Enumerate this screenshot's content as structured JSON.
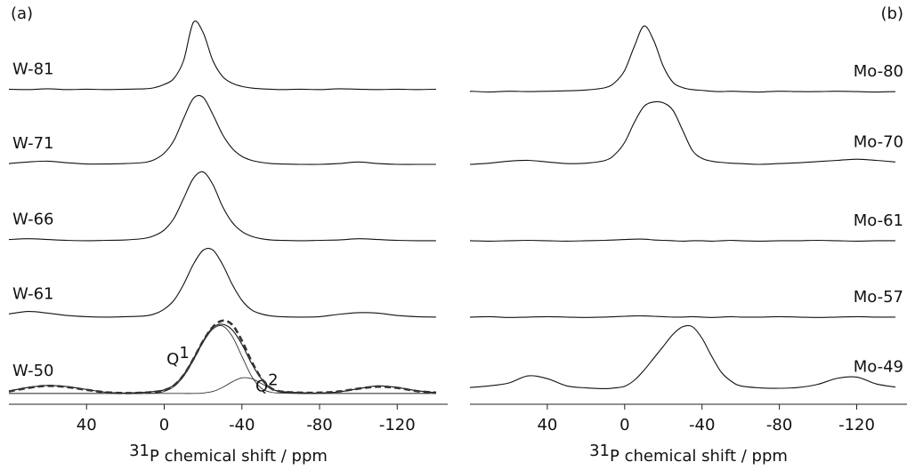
{
  "chart_data": [
    {
      "type": "line",
      "panel_label": "(a)",
      "label_side": "left",
      "x_label": {
        "sup": "31",
        "text": "P chemical shift / ppm"
      },
      "x": [
        80,
        70,
        60,
        50,
        40,
        30,
        20,
        10,
        5,
        0,
        -5,
        -10,
        -15,
        -20,
        -25,
        -30,
        -35,
        -40,
        -45,
        -50,
        -55,
        -60,
        -70,
        -80,
        -90,
        -100,
        -110,
        -120,
        -130,
        -140
      ],
      "xlim": [
        80,
        -146
      ],
      "xticks": [
        40,
        0,
        -40,
        -80,
        -120
      ],
      "ylim": [
        0,
        100
      ],
      "series": [
        {
          "name": "W-81",
          "color": "#111111",
          "values": [
            78.8,
            78.7,
            78.9,
            78.7,
            78.8,
            78.7,
            78.8,
            78.9,
            79.2,
            80,
            81.5,
            86,
            95.5,
            93,
            86,
            82,
            80.3,
            79.5,
            79.1,
            78.9,
            78.8,
            78.7,
            78.8,
            78.7,
            78.9,
            78.8,
            78.7,
            78.8,
            78.7,
            78.8
          ]
        },
        {
          "name": "W-71",
          "color": "#111111",
          "values": [
            60.2,
            60.6,
            60.8,
            60.4,
            60.1,
            60.1,
            60.2,
            60.5,
            61.2,
            62.8,
            66,
            71.5,
            76.5,
            76.8,
            72.5,
            67.5,
            64,
            62,
            61,
            60.5,
            60.2,
            60.1,
            60,
            60,
            60.2,
            60.6,
            60.2,
            60,
            60,
            60
          ]
        },
        {
          "name": "W-66",
          "color": "#111111",
          "values": [
            41.2,
            41.4,
            41.2,
            41,
            40.9,
            41,
            41.1,
            41.5,
            42.2,
            43.6,
            46.5,
            51.5,
            56.5,
            58.1,
            55,
            49.5,
            45.5,
            43.2,
            42,
            41.4,
            41.1,
            41,
            40.9,
            41,
            41.1,
            41.4,
            41.2,
            41,
            40.9,
            40.9
          ]
        },
        {
          "name": "W-61",
          "color": "#111111",
          "values": [
            22.6,
            23.2,
            22.8,
            22.2,
            21.9,
            21.8,
            21.9,
            22.1,
            22.6,
            23.8,
            26,
            30,
            35,
            38.5,
            38.6,
            35,
            30,
            26,
            23.6,
            22.6,
            22.1,
            21.9,
            21.8,
            21.9,
            22.5,
            22.9,
            22.8,
            22.2,
            21.9,
            21.8
          ]
        },
        {
          "name": "W-50",
          "color": "#111111",
          "values": [
            3.3,
            4.2,
            4.7,
            4.4,
            3.7,
            3,
            2.8,
            3,
            3.2,
            3.6,
            4.8,
            7.4,
            11.4,
            15.8,
            19.2,
            20,
            18.6,
            15,
            10.2,
            6.4,
            4,
            3.2,
            2.9,
            2.8,
            3.1,
            3.9,
            4.6,
            4.2,
            3.4,
            2.9
          ]
        }
      ],
      "fit_total": {
        "color": "#333333",
        "values": [
          3.2,
          4.1,
          4.6,
          4.3,
          3.6,
          3,
          2.8,
          2.9,
          3.1,
          3.5,
          4.7,
          7.3,
          11.3,
          15.8,
          19.3,
          20.9,
          19.9,
          15.9,
          10.7,
          6.5,
          4,
          3.2,
          2.9,
          2.9,
          3.2,
          3.9,
          4.4,
          4.1,
          3.3,
          2.9
        ]
      },
      "fits": [
        {
          "label": {
            "text": "Q",
            "sup": "1"
          },
          "values": [
            2.7,
            2.7,
            2.7,
            2.7,
            2.7,
            2.7,
            2.7,
            2.7,
            2.8,
            3.2,
            4.4,
            7,
            11,
            15.5,
            18.8,
            19.6,
            17,
            12,
            7,
            4,
            3,
            2.8,
            2.7,
            2.7,
            2.7,
            2.7,
            2.7,
            2.7,
            2.7,
            2.7
          ]
        },
        {
          "label": {
            "text": "Q",
            "sup": "2"
          },
          "values": [
            2.7,
            2.7,
            2.7,
            2.7,
            2.7,
            2.7,
            2.7,
            2.7,
            2.7,
            2.7,
            2.7,
            2.7,
            2.7,
            2.8,
            3.2,
            4.2,
            5.6,
            6.6,
            6.4,
            5.2,
            3.9,
            3.1,
            2.7,
            2.7,
            2.7,
            2.7,
            2.7,
            2.7,
            2.7,
            2.7
          ]
        }
      ]
    },
    {
      "type": "line",
      "panel_label": "(b)",
      "label_side": "right",
      "x_label": {
        "sup": "31",
        "text": "P chemical shift / ppm"
      },
      "x": [
        80,
        70,
        60,
        50,
        40,
        30,
        20,
        10,
        5,
        0,
        -5,
        -10,
        -15,
        -20,
        -25,
        -30,
        -35,
        -40,
        -45,
        -50,
        -55,
        -60,
        -70,
        -80,
        -90,
        -100,
        -110,
        -120,
        -130,
        -140
      ],
      "xlim": [
        80,
        -146
      ],
      "xticks": [
        40,
        0,
        -40,
        -80,
        -120
      ],
      "ylim": [
        0,
        100
      ],
      "series": [
        {
          "name": "Mo-80",
          "color": "#111111",
          "values": [
            78.3,
            78.1,
            78.3,
            78.2,
            78.3,
            78.4,
            78.6,
            79.2,
            80.5,
            83.5,
            89.5,
            94.6,
            91,
            84.5,
            80.5,
            79.2,
            78.7,
            78.5,
            78.3,
            78.2,
            78.3,
            78.2,
            78.1,
            78.3,
            78.2,
            78.2,
            78.3,
            78.2,
            78.1,
            78.2
          ]
        },
        {
          "name": "Mo-70",
          "color": "#111111",
          "values": [
            60,
            60.3,
            60.8,
            61,
            60.6,
            60.2,
            60.3,
            61,
            62.5,
            65.5,
            70.5,
            74.5,
            75.6,
            75.4,
            73.5,
            68.5,
            63.5,
            61.5,
            60.8,
            60.5,
            60.3,
            60.2,
            60,
            60.2,
            60.4,
            60.7,
            61,
            61.3,
            61,
            60.6
          ]
        },
        {
          "name": "Mo-61",
          "color": "#111111",
          "values": [
            40.9,
            40.8,
            40.9,
            41,
            40.9,
            40.8,
            40.9,
            41,
            41.1,
            41.2,
            41.3,
            41.3,
            41.1,
            41,
            40.9,
            40.8,
            40.9,
            40.9,
            40.8,
            40.9,
            41,
            40.9,
            40.8,
            40.9,
            40.9,
            41,
            40.9,
            40.8,
            40.9,
            40.9
          ]
        },
        {
          "name": "Mo-57",
          "color": "#111111",
          "values": [
            21.8,
            21.9,
            21.7,
            21.8,
            21.9,
            21.8,
            21.7,
            21.8,
            21.9,
            22,
            22.1,
            22.1,
            22,
            21.9,
            21.8,
            21.8,
            21.9,
            21.8,
            21.7,
            21.8,
            21.9,
            21.8,
            21.8,
            21.9,
            21.8,
            21.7,
            21.8,
            21.9,
            21.8,
            21.8
          ]
        },
        {
          "name": "Mo-49",
          "color": "#111111",
          "values": [
            4.2,
            4.6,
            5.3,
            7.1,
            6.4,
            4.6,
            4.1,
            3.9,
            4.1,
            4.5,
            6,
            8.5,
            11.5,
            14.5,
            17.5,
            19.4,
            19.4,
            16.5,
            12,
            8,
            5.8,
            4.6,
            4.1,
            4,
            4.2,
            5,
            6.5,
            6.8,
            5.1,
            4.3
          ]
        }
      ]
    }
  ]
}
